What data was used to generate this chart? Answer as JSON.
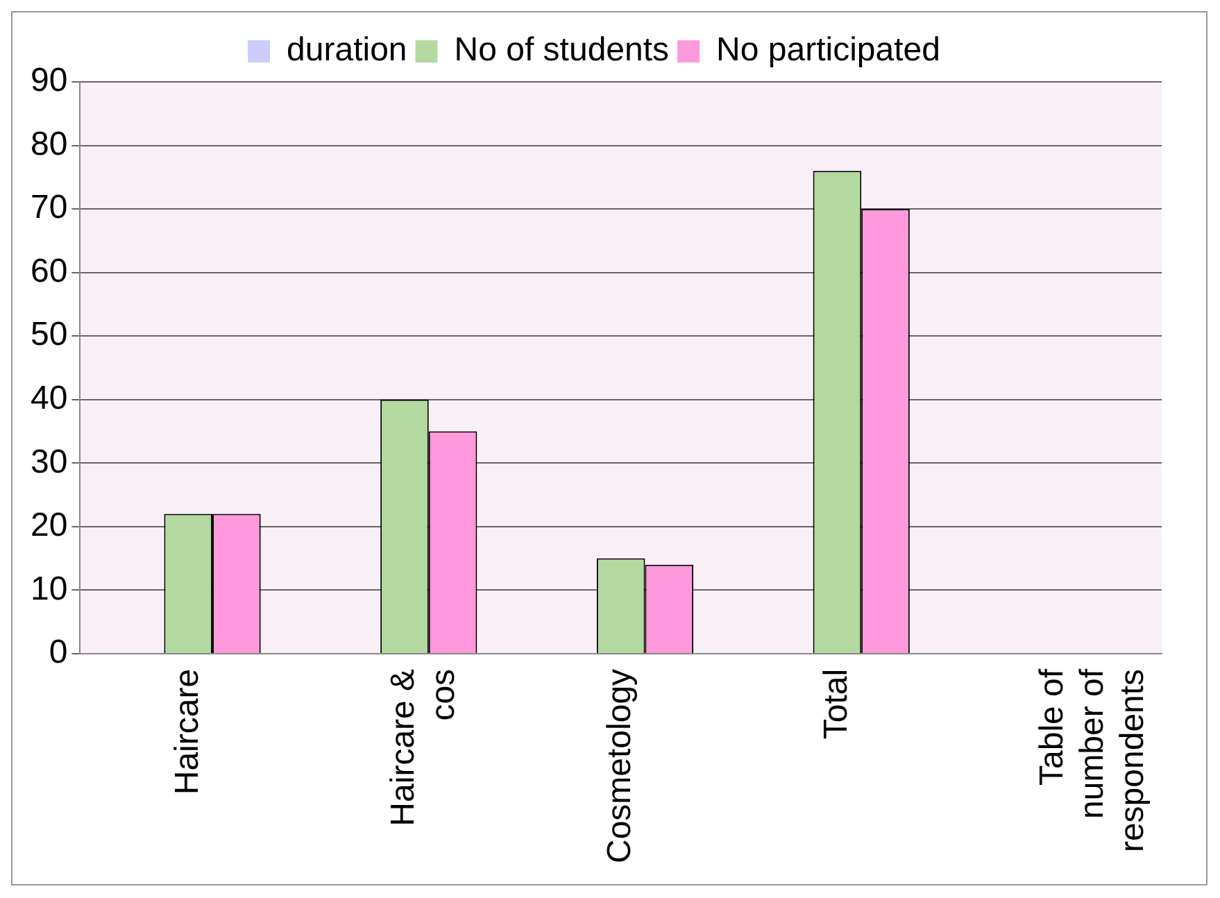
{
  "chart_data": {
    "type": "bar",
    "categories": [
      "Haircare",
      "Haircare & cos",
      "Cosmetology",
      "Total",
      "Table of number of respondents"
    ],
    "series": [
      {
        "name": "duration",
        "color": "#ccccff",
        "values": [
          null,
          null,
          null,
          null,
          null
        ]
      },
      {
        "name": "No of students",
        "color": "#b3d9a0",
        "values": [
          22,
          40,
          15,
          76,
          null
        ]
      },
      {
        "name": "No participated",
        "color": "#ff99dd",
        "values": [
          22,
          35,
          14,
          70,
          null
        ]
      }
    ],
    "ylim": [
      0,
      90
    ],
    "yticks": [
      0,
      10,
      20,
      30,
      40,
      50,
      60,
      70,
      80,
      90
    ],
    "grid": "y",
    "legend": "top"
  }
}
